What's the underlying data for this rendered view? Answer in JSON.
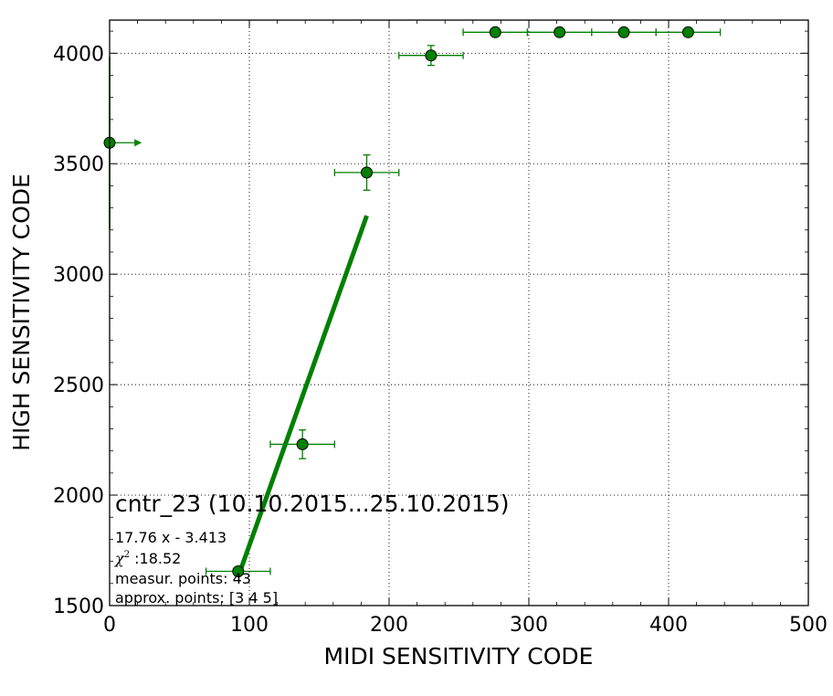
{
  "chart_data": {
    "type": "scatter",
    "xlabel": "MIDI SENSITIVITY CODE",
    "ylabel": "HIGH SENSITIVITY CODE",
    "xlim": [
      0,
      500
    ],
    "ylim": [
      1500,
      4150
    ],
    "xticks": [
      0,
      100,
      200,
      300,
      400,
      500
    ],
    "yticks": [
      1500,
      2000,
      2500,
      3000,
      3500,
      4000
    ],
    "x_tick_labels": [
      "0",
      "100",
      "200",
      "300",
      "400",
      "500"
    ],
    "y_tick_labels": [
      "1500",
      "2000",
      "2500",
      "3000",
      "3500",
      "4000"
    ],
    "grid": true,
    "color": "#008000",
    "points": [
      {
        "x": 92,
        "y": 1655,
        "xerr": 23,
        "yerr": 0
      },
      {
        "x": 138,
        "y": 2230,
        "xerr": 23,
        "yerr": 65
      },
      {
        "x": 184,
        "y": 3460,
        "xerr": 23,
        "yerr": 80
      },
      {
        "x": 230,
        "y": 3990,
        "xerr": 23,
        "yerr": 45
      },
      {
        "x": 276,
        "y": 4095,
        "xerr": 23,
        "yerr": 0
      },
      {
        "x": 322,
        "y": 4095,
        "xerr": 23,
        "yerr": 0
      },
      {
        "x": 368,
        "y": 4095,
        "xerr": 23,
        "yerr": 0
      },
      {
        "x": 414,
        "y": 4095,
        "xerr": 23,
        "yerr": 0
      }
    ],
    "edge_point": {
      "x": 0,
      "y": 3595,
      "xerr": 23,
      "yerr": 390
    },
    "fit_line": {
      "slope": 17.76,
      "intercept": -3.413,
      "x_start": 92,
      "x_end": 184
    },
    "annotation": {
      "title": "cntr_23 (10.10.2015...25.10.2015)",
      "equation": "17.76 x - 3.413",
      "chi_symbol": "χ",
      "chi_power": "2",
      "chi_value": " :18.52",
      "measur_points": "measur. points: 43",
      "approx_points": "approx. points: [3 4 5]"
    }
  }
}
